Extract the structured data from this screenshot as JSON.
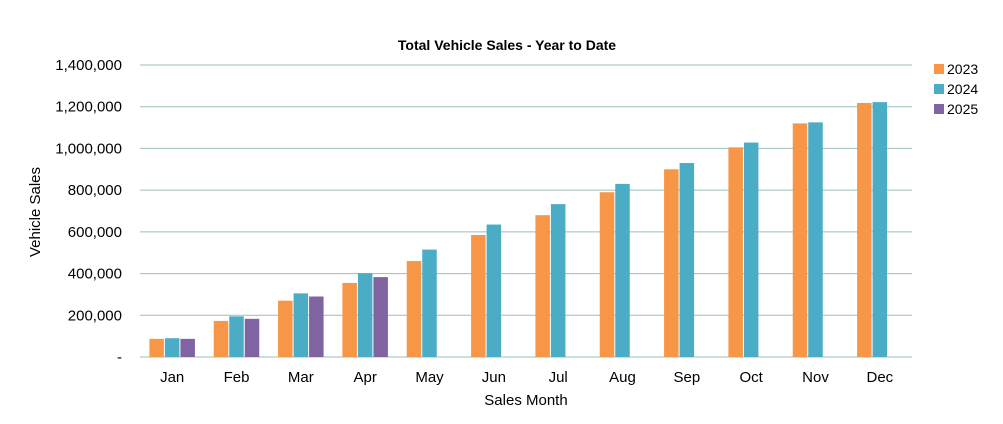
{
  "chart_data": {
    "type": "bar",
    "title": "Total Vehicle Sales - Year to Date",
    "xlabel": "Sales Month",
    "ylabel": "Vehicle Sales",
    "categories": [
      "Jan",
      "Feb",
      "Mar",
      "Apr",
      "May",
      "Jun",
      "Jul",
      "Aug",
      "Sep",
      "Oct",
      "Nov",
      "Dec"
    ],
    "series": [
      {
        "name": "2023",
        "color": "#f79646",
        "values": [
          87000,
          173000,
          270000,
          355000,
          460000,
          585000,
          680000,
          790000,
          900000,
          1005000,
          1120000,
          1218000
        ]
      },
      {
        "name": "2024",
        "color": "#4bacc6",
        "values": [
          90000,
          195000,
          305000,
          402000,
          515000,
          635000,
          733000,
          830000,
          930000,
          1028000,
          1125000,
          1222000
        ]
      },
      {
        "name": "2025",
        "color": "#8064a2",
        "values": [
          87000,
          183000,
          290000,
          383000,
          null,
          null,
          null,
          null,
          null,
          null,
          null,
          null
        ]
      }
    ],
    "ylim": [
      0,
      1400000
    ],
    "yticks": [
      0,
      200000,
      400000,
      600000,
      800000,
      1000000,
      1200000,
      1400000
    ],
    "ytick_labels": [
      "-",
      "200,000",
      "400,000",
      "600,000",
      "800,000",
      "1,000,000",
      "1,200,000",
      "1,400,000"
    ],
    "grid": true,
    "legend_position": "right"
  }
}
